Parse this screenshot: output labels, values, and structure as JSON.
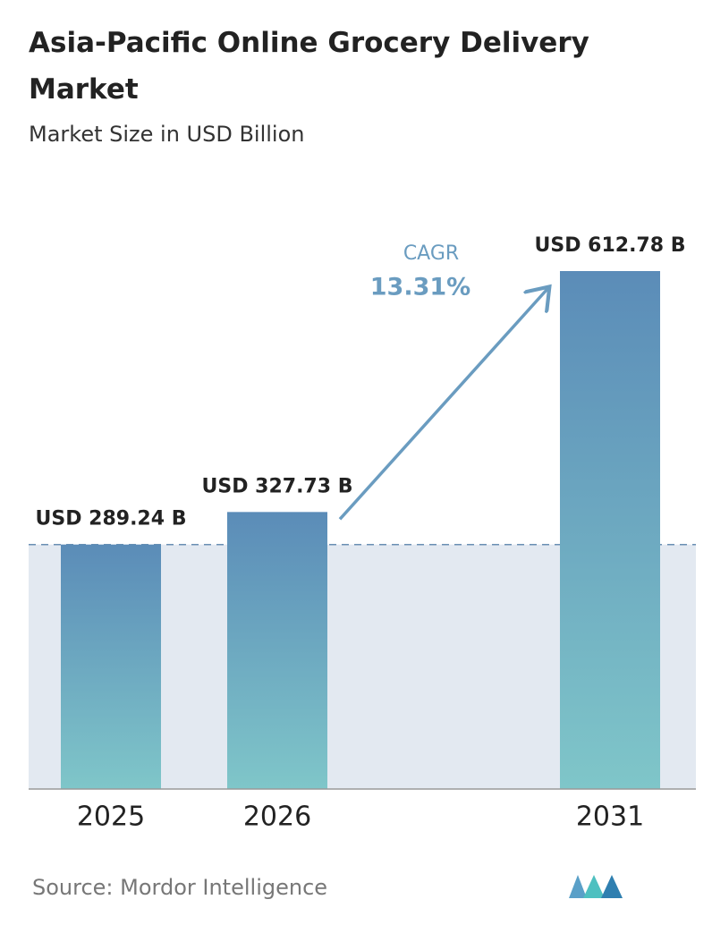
{
  "chart_data": {
    "type": "bar",
    "title": "Asia-Pacific Online Grocery Delivery Market",
    "subtitle": "Market Size in USD Billion",
    "categories": [
      "2025",
      "2026",
      "2031"
    ],
    "values": [
      289.24,
      327.73,
      612.78
    ],
    "value_labels": [
      "USD 289.24 B",
      "USD 327.73 B",
      "USD 612.78 B"
    ],
    "annotations": {
      "cagr_label": "CAGR",
      "cagr_value": "13.31%"
    },
    "source": "Source:  Mordor Intelligence"
  }
}
